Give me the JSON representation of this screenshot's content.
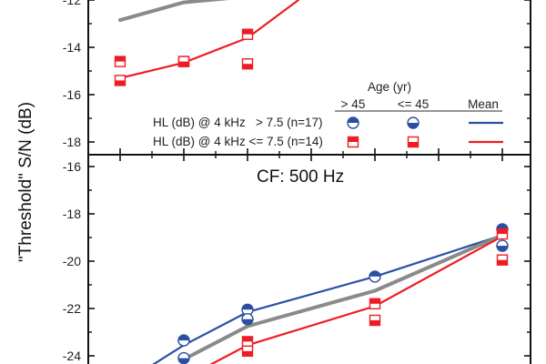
{
  "chart_data": {
    "type": "line",
    "ylabel": "\"Threshold\" S/N (dB)",
    "colors": {
      "high_hl": "#2b4fa3",
      "low_hl": "#ee1c24",
      "grand_mean": "#8a8a8a",
      "axis": "#111111"
    },
    "x_index": [
      1,
      2,
      3,
      4,
      5,
      6,
      7
    ],
    "legend": {
      "title": "Age (yr)",
      "columns": [
        "> 45",
        "<= 45",
        "Mean"
      ],
      "rows": [
        {
          "label": "HL (dB) @ 4 kHz   > 7.5 (n=17)",
          "group": "high_hl"
        },
        {
          "label": "HL (dB) @ 4 kHz <= 7.5 (n=14)",
          "group": "low_hl"
        }
      ],
      "placement": "bottom-right of upper panel"
    },
    "panels": [
      {
        "name": "upper",
        "title": "",
        "ylim": [
          -19.4,
          -11.8
        ],
        "yticks": [
          -12,
          -14,
          -16,
          -18
        ],
        "ytick_labels": [
          "-12",
          "-14",
          "-16",
          "-18"
        ],
        "series": [
          {
            "name": "Grand mean",
            "group": "grand_mean",
            "kind": "line",
            "x": [
              1,
              2,
              3
            ],
            "y": [
              -12.85,
              -12.1,
              -11.85
            ]
          },
          {
            "name": "HL <= 7.5 Mean",
            "group": "low_hl",
            "kind": "line",
            "x": [
              1,
              2,
              3,
              3.8
            ],
            "y": [
              -15.3,
              -14.65,
              -13.6,
              -12.0
            ]
          },
          {
            "name": "HL <= 7.5, Age > 45",
            "group": "low_hl",
            "kind": "marker",
            "age": "gt45",
            "x": [
              1,
              2,
              3
            ],
            "y": [
              -14.6,
              -14.6,
              -13.45
            ]
          },
          {
            "name": "HL <= 7.5, Age <= 45",
            "group": "low_hl",
            "kind": "marker",
            "age": "le45",
            "x": [
              1,
              2,
              3
            ],
            "y": [
              -15.4,
              -14.6,
              -14.7
            ]
          }
        ]
      },
      {
        "name": "lower",
        "title": "CF: 500 Hz",
        "ylim": [
          -24.4,
          -15.5
        ],
        "yticks": [
          -16,
          -18,
          -20,
          -22,
          -24
        ],
        "ytick_labels": [
          "-16",
          "-18",
          "-20",
          "-22",
          "-24"
        ],
        "series": [
          {
            "name": "HL > 7.5 Mean",
            "group": "high_hl",
            "kind": "line",
            "x": [
              1.5,
              2,
              3,
              5,
              7
            ],
            "y": [
              -24.4,
              -23.55,
              -22.15,
              -20.65,
              -18.9
            ]
          },
          {
            "name": "Grand mean",
            "group": "grand_mean",
            "kind": "line",
            "x": [
              2,
              3,
              5,
              7
            ],
            "y": [
              -24.15,
              -22.75,
              -21.25,
              -18.9
            ]
          },
          {
            "name": "HL <= 7.5 Mean",
            "group": "low_hl",
            "kind": "line",
            "x": [
              2.4,
              3,
              5,
              7
            ],
            "y": [
              -24.4,
              -23.55,
              -21.9,
              -18.95
            ]
          },
          {
            "name": "HL > 7.5, Age > 45",
            "group": "high_hl",
            "kind": "marker",
            "age": "gt45",
            "x": [
              2,
              3,
              5,
              7
            ],
            "y": [
              -23.35,
              -22.05,
              -20.65,
              -18.65
            ]
          },
          {
            "name": "HL > 7.5, Age <= 45",
            "group": "high_hl",
            "kind": "marker",
            "age": "le45",
            "x": [
              2,
              3,
              7
            ],
            "y": [
              -24.1,
              -22.45,
              -19.35
            ]
          },
          {
            "name": "HL <= 7.5, Age > 45",
            "group": "low_hl",
            "kind": "marker",
            "age": "gt45",
            "x": [
              3,
              5,
              7
            ],
            "y": [
              -23.4,
              -21.8,
              -18.85
            ]
          },
          {
            "name": "HL <= 7.5, Age <= 45",
            "group": "low_hl",
            "kind": "marker",
            "age": "le45",
            "x": [
              3,
              5,
              7
            ],
            "y": [
              -23.8,
              -22.5,
              -19.95
            ]
          }
        ]
      }
    ]
  }
}
